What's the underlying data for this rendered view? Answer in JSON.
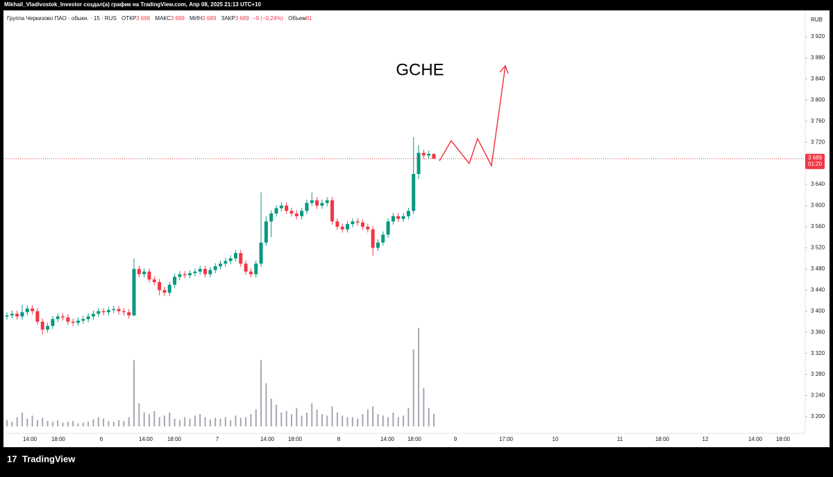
{
  "header": {
    "author_line": "Mikhail_Vladivostok_Investor создал(а) график на TradingView.com, Апр 08, 2025 21:13 UTC+10"
  },
  "footer": {
    "logo": "TradingView"
  },
  "chart_data": {
    "type": "candlestick",
    "title": "GCHE",
    "legend": {
      "symbol": "Группа Черкизово ПАО · обыкн. · 15 · RUS",
      "open_label": "ОТКР",
      "open": "3 698",
      "high_label": "МАКС",
      "high": "3 699",
      "low_label": "МИН",
      "low": "3 689",
      "close_label": "ЗАКР",
      "close": "3 689",
      "change": "−9 (−0,24%)",
      "volume_label": "Объем",
      "volume": "81"
    },
    "currency": "RUB",
    "up_color": "#089981",
    "down_color": "#f23645",
    "volume_color": "#a3a6af",
    "open": [
      3390,
      3392,
      3395,
      3390,
      3398,
      3405,
      3400,
      3380,
      3365,
      3372,
      3385,
      3390,
      3388,
      3380,
      3378,
      3382,
      3385,
      3390,
      3395,
      3400,
      3398,
      3402,
      3404,
      3400,
      3398,
      3392,
      3480,
      3470,
      3475,
      3460,
      3455,
      3440,
      3435,
      3450,
      3465,
      3470,
      3468,
      3472,
      3475,
      3480,
      3470,
      3478,
      3485,
      3490,
      3495,
      3500,
      3510,
      3490,
      3475,
      3470,
      3490,
      3530,
      3570,
      3585,
      3595,
      3600,
      3590,
      3585,
      3580,
      3590,
      3605,
      3610,
      3600,
      3605,
      3610,
      3570,
      3560,
      3555,
      3565,
      3570,
      3568,
      3560,
      3555,
      3520,
      3530,
      3545,
      3570,
      3580,
      3575,
      3580,
      3590,
      3660,
      3700,
      3695,
      3698
    ],
    "high": [
      3398,
      3401,
      3401,
      3412,
      3411,
      3411,
      3406,
      3386,
      3378,
      3391,
      3396,
      3396,
      3394,
      3386,
      3388,
      3391,
      3396,
      3401,
      3406,
      3406,
      3408,
      3410,
      3410,
      3406,
      3404,
      3500,
      3486,
      3481,
      3481,
      3466,
      3461,
      3446,
      3456,
      3471,
      3476,
      3476,
      3478,
      3481,
      3486,
      3486,
      3484,
      3491,
      3496,
      3501,
      3506,
      3516,
      3516,
      3496,
      3481,
      3496,
      3625,
      3580,
      3591,
      3601,
      3606,
      3606,
      3596,
      3591,
      3596,
      3611,
      3625,
      3616,
      3611,
      3616,
      3616,
      3576,
      3566,
      3571,
      3576,
      3576,
      3574,
      3566,
      3561,
      3536,
      3551,
      3576,
      3586,
      3586,
      3586,
      3596,
      3730,
      3715,
      3706,
      3704,
      3699
    ],
    "low": [
      3384,
      3386,
      3384,
      3384,
      3392,
      3394,
      3374,
      3356,
      3359,
      3366,
      3379,
      3382,
      3374,
      3372,
      3372,
      3376,
      3379,
      3384,
      3389,
      3392,
      3392,
      3396,
      3394,
      3392,
      3386,
      3390,
      3464,
      3464,
      3454,
      3449,
      3430,
      3429,
      3429,
      3444,
      3459,
      3462,
      3462,
      3466,
      3469,
      3464,
      3464,
      3472,
      3479,
      3484,
      3489,
      3494,
      3484,
      3469,
      3464,
      3464,
      3484,
      3524,
      3540,
      3579,
      3589,
      3584,
      3579,
      3574,
      3574,
      3584,
      3599,
      3594,
      3594,
      3599,
      3564,
      3554,
      3549,
      3549,
      3559,
      3562,
      3554,
      3549,
      3505,
      3514,
      3524,
      3539,
      3564,
      3569,
      3569,
      3574,
      3584,
      3650,
      3689,
      3689,
      3689
    ],
    "close": [
      3392,
      3395,
      3390,
      3398,
      3405,
      3400,
      3380,
      3365,
      3372,
      3385,
      3390,
      3388,
      3380,
      3378,
      3382,
      3385,
      3390,
      3395,
      3400,
      3398,
      3402,
      3404,
      3400,
      3398,
      3392,
      3480,
      3470,
      3475,
      3460,
      3455,
      3440,
      3435,
      3450,
      3465,
      3470,
      3468,
      3472,
      3475,
      3480,
      3470,
      3478,
      3485,
      3490,
      3495,
      3500,
      3510,
      3490,
      3475,
      3470,
      3490,
      3530,
      3570,
      3585,
      3595,
      3600,
      3590,
      3585,
      3580,
      3590,
      3605,
      3610,
      3600,
      3605,
      3610,
      3570,
      3560,
      3555,
      3565,
      3570,
      3568,
      3560,
      3555,
      3520,
      3530,
      3545,
      3570,
      3580,
      3575,
      3580,
      3590,
      3660,
      3700,
      3695,
      3698,
      3689
    ],
    "volume": [
      40,
      30,
      60,
      90,
      50,
      70,
      40,
      55,
      35,
      30,
      40,
      25,
      30,
      35,
      20,
      25,
      30,
      45,
      60,
      50,
      35,
      30,
      40,
      35,
      60,
      430,
      150,
      90,
      80,
      100,
      60,
      70,
      90,
      50,
      40,
      60,
      50,
      70,
      80,
      60,
      45,
      55,
      50,
      60,
      40,
      70,
      55,
      60,
      80,
      110,
      430,
      280,
      180,
      140,
      90,
      100,
      80,
      120,
      70,
      90,
      150,
      110,
      80,
      70,
      130,
      90,
      70,
      60,
      60,
      50,
      80,
      110,
      130,
      80,
      70,
      60,
      90,
      60,
      70,
      120,
      500,
      640,
      250,
      120,
      81
    ],
    "volume_lim": [
      0,
      1000
    ],
    "ylim": [
      3200,
      3920
    ],
    "yticks": [
      {
        "value": 3200,
        "label": "3 200"
      },
      {
        "value": 3240,
        "label": "3 240"
      },
      {
        "value": 3280,
        "label": "3 280"
      },
      {
        "value": 3320,
        "label": "3 320"
      },
      {
        "value": 3360,
        "label": "3 360"
      },
      {
        "value": 3400,
        "label": "3 400"
      },
      {
        "value": 3440,
        "label": "3 440"
      },
      {
        "value": 3480,
        "label": "3 480"
      },
      {
        "value": 3520,
        "label": "3 520"
      },
      {
        "value": 3560,
        "label": "3 560"
      },
      {
        "value": 3600,
        "label": "3 600"
      },
      {
        "value": 3640,
        "label": "3 640"
      },
      {
        "value": 3680,
        "label": "3 680"
      },
      {
        "value": 3720,
        "label": "3 720"
      },
      {
        "value": 3760,
        "label": "3 760"
      },
      {
        "value": 3800,
        "label": "3 800"
      },
      {
        "value": 3840,
        "label": "3 840"
      },
      {
        "value": 3880,
        "label": "3 880"
      },
      {
        "value": 3920,
        "label": "3 920"
      }
    ],
    "xticks": [
      "14:00",
      "18:00",
      "6",
      "14:00",
      "18:00",
      "7",
      "14:00",
      "18:00",
      "8",
      "14:00",
      "18:00",
      "9",
      "17:00",
      "10",
      "11",
      "18:00",
      "12",
      "14:00",
      "18:00"
    ],
    "last_price": {
      "value": 3689,
      "label": "3 689"
    },
    "countdown": "01:20"
  }
}
